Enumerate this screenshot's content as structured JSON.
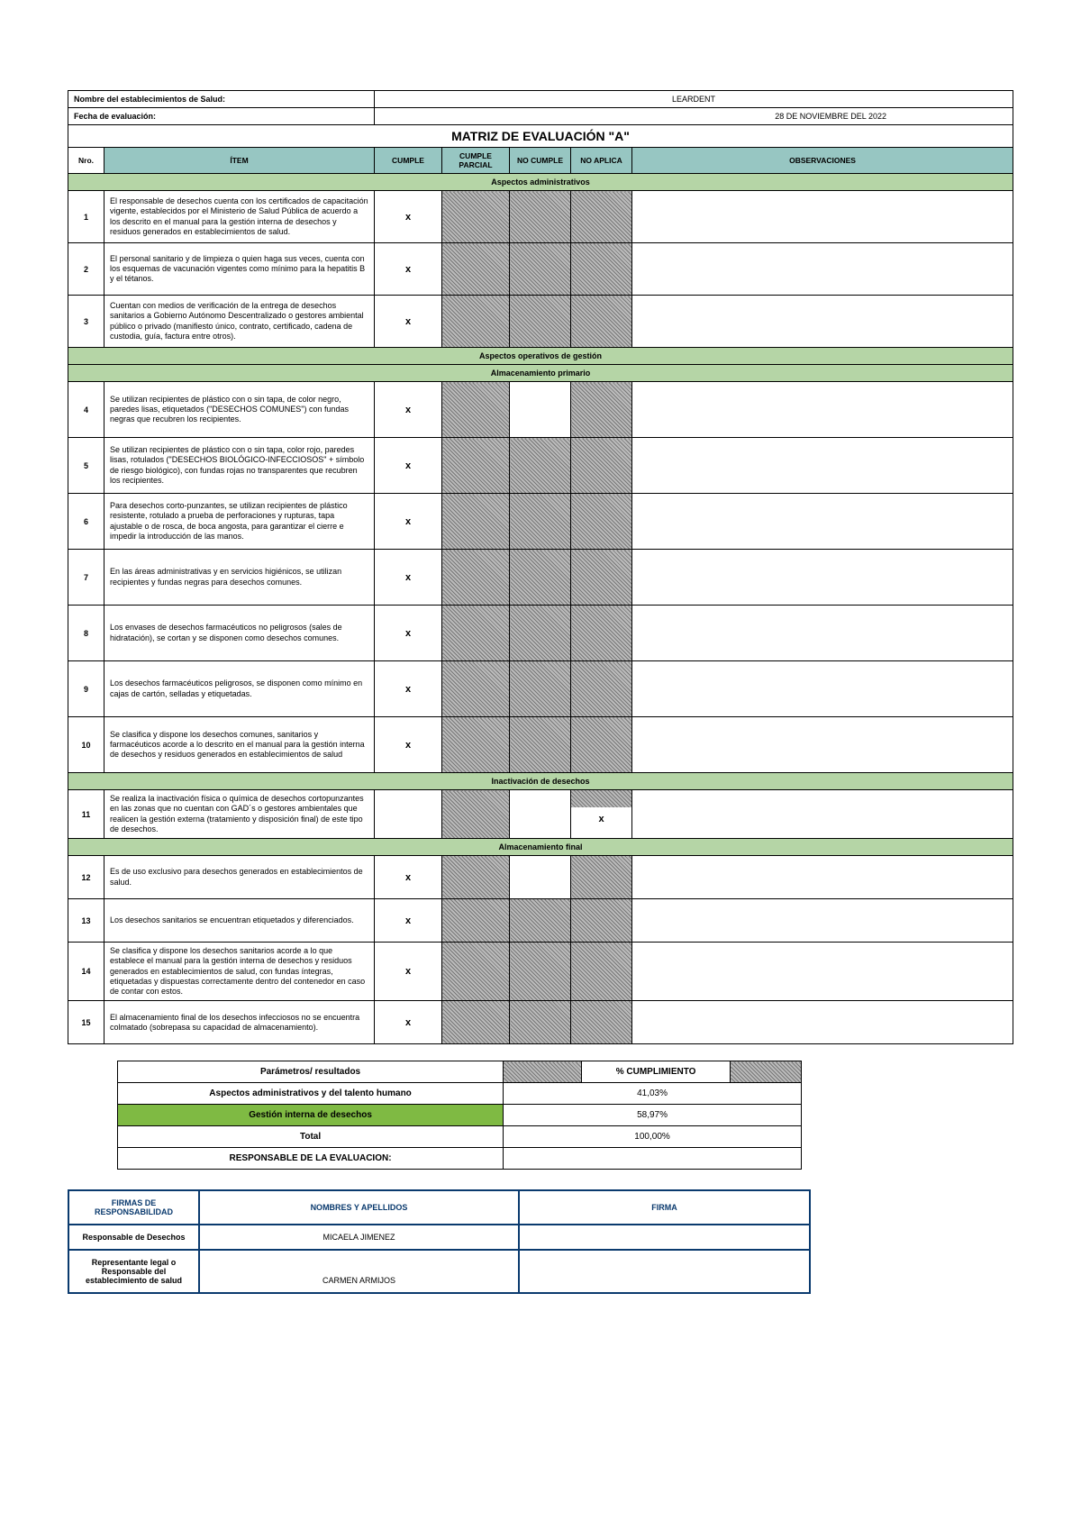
{
  "header": {
    "establishment_label": "Nombre del establecimientos de Salud:",
    "establishment_value": "LEARDENT",
    "date_label": "Fecha de evaluación:",
    "date_value": "28 DE NOVIEMBRE DEL 2022",
    "title": "MATRIZ DE EVALUACIÓN \"A\""
  },
  "columns": {
    "nro": "Nro.",
    "item": "ÍTEM",
    "cumple": "CUMPLE",
    "parcial": "CUMPLE PARCIAL",
    "nocumple": "NO CUMPLE",
    "noaplica": "NO APLICA",
    "obs": "OBSERVACIONES"
  },
  "sections": {
    "admin": "Aspectos administrativos",
    "operativos": "Aspectos operativos de gestión",
    "alm_prim": "Almacenamiento primario",
    "inactiv": "Inactivación de desechos",
    "alm_final": "Almacenamiento final"
  },
  "items": [
    {
      "n": "1",
      "txt": "El responsable de desechos cuenta con los certificados de capacitación vigente, establecidos por el Ministerio de Salud Pública de acuerdo a los descrito en el manual para la gestión interna de desechos y residuos generados en establecimientos de salud.",
      "c": "x",
      "p": "h",
      "nc": "h",
      "na": "h"
    },
    {
      "n": "2",
      "txt": "El personal sanitario y de limpieza o quien haga sus veces, cuenta con los esquemas de vacunación vigentes  como mínimo para la hepatitis B y el tétanos.",
      "c": "x",
      "p": "h",
      "nc": "h",
      "na": "h"
    },
    {
      "n": "3",
      "txt": "Cuentan con medios de verificación de la entrega de desechos sanitarios a Gobierno Autónomo Descentralizado o gestores ambiental público o privado (manifiesto único, contrato, certificado, cadena de custodia, guía, factura entre otros).",
      "c": "x",
      "p": "h",
      "nc": "h",
      "na": "h"
    },
    {
      "n": "4",
      "txt": "Se utilizan recipientes de plástico con o sin tapa, de color negro, paredes lisas, etiquetados (\"DESECHOS COMUNES\") con fundas negras que recubren los recipientes.",
      "c": "x",
      "p": "h",
      "nc": "",
      "na": "h"
    },
    {
      "n": "5",
      "txt": "Se utilizan recipientes de plástico con o sin tapa, color rojo, paredes lisas, rotulados (\"DESECHOS BIOLÓGICO-INFECCIOSOS\" + símbolo de riesgo biológico), con fundas rojas no transparentes que recubren los recipientes.",
      "c": "x",
      "p": "h",
      "nc": "h",
      "na": "h"
    },
    {
      "n": "6",
      "txt": "Para desechos corto-punzantes, se utilizan recipientes de plástico resistente, rotulado a prueba de perforaciones y rupturas, tapa ajustable o de rosca, de boca angosta, para garantizar el cierre e impedir la introducción de las manos.",
      "c": "x",
      "p": "h",
      "nc": "h",
      "na": "h"
    },
    {
      "n": "7",
      "txt": "En las áreas administrativas y en servicios higiénicos, se utilizan recipientes y fundas negras para desechos comunes.",
      "c": "x",
      "p": "h",
      "nc": "h",
      "na": "h"
    },
    {
      "n": "8",
      "txt": "Los envases de desechos farmacéuticos no peligrosos (sales de hidratación), se cortan y se disponen como desechos comunes.",
      "c": "x",
      "p": "h",
      "nc": "h",
      "na": "h"
    },
    {
      "n": "9",
      "txt": "Los desechos farmacéuticos peligrosos, se disponen como mínimo en cajas de cartón, selladas y etiquetadas.",
      "c": "x",
      "p": "h",
      "nc": "h",
      "na": "h"
    },
    {
      "n": "10",
      "txt": "Se clasifica y dispone los desechos comunes, sanitarios y farmacéuticos acorde a lo descrito en el manual para la gestión interna de desechos y residuos generados en establecimientos de salud",
      "c": "x",
      "p": "h",
      "nc": "h",
      "na": "h"
    },
    {
      "n": "11",
      "txt": "Se realiza la inactivación física o química de desechos cortopunzantes en las zonas que no cuentan con GAD´s o gestores ambientales que realicen la gestión externa (tratamiento y disposición final) de este tipo de desechos.",
      "c": "",
      "p": "h",
      "nc": "",
      "na": "x",
      "natop": "h"
    },
    {
      "n": "12",
      "txt": "Es de uso exclusivo para desechos generados en establecimientos de salud.",
      "c": "x",
      "p": "h",
      "nc": "",
      "na": "h"
    },
    {
      "n": "13",
      "txt": "Los desechos sanitarios se encuentran etiquetados y  diferenciados.",
      "c": "x",
      "p": "h",
      "nc": "h",
      "na": "h"
    },
    {
      "n": "14",
      "txt": "Se clasifica y dispone los desechos sanitarios acorde a lo que establece el manual para la gestión interna de desechos y residuos generados en establecimientos de salud, con fundas íntegras, etiquetadas y dispuestas correctamente dentro del contenedor en caso de contar con estos.",
      "c": "x",
      "p": "h",
      "nc": "h",
      "na": "h"
    },
    {
      "n": "15",
      "txt": "El almacenamiento final de los desechos infecciosos no se encuentra colmatado (sobrepasa su capacidad de almacenamiento).",
      "c": "x",
      "p": "h",
      "nc": "h",
      "na": "h"
    }
  ],
  "results": {
    "param_hdr": "Parámetros/ resultados",
    "pct_hdr": "% CUMPLIMIENTO",
    "rows": [
      {
        "label": "Aspectos administrativos y del talento humano",
        "pct": "41,03%",
        "green": false
      },
      {
        "label": "Gestión interna de desechos",
        "pct": "58,97%",
        "green": true
      },
      {
        "label": "Total",
        "pct": "100,00%",
        "green": false
      }
    ],
    "resp_label": "RESPONSABLE DE LA EVALUACION:"
  },
  "signatures": {
    "h1": "FIRMAS DE RESPONSABILIDAD",
    "h2": "NOMBRES Y APELLIDOS",
    "h3": "FIRMA",
    "rows": [
      {
        "role": "Responsable de Desechos",
        "name": "MICAELA JIMENEZ"
      },
      {
        "role": "Representante legal o Responsable del establecimiento de salud",
        "name": "CARMEN ARMIJOS"
      }
    ]
  }
}
